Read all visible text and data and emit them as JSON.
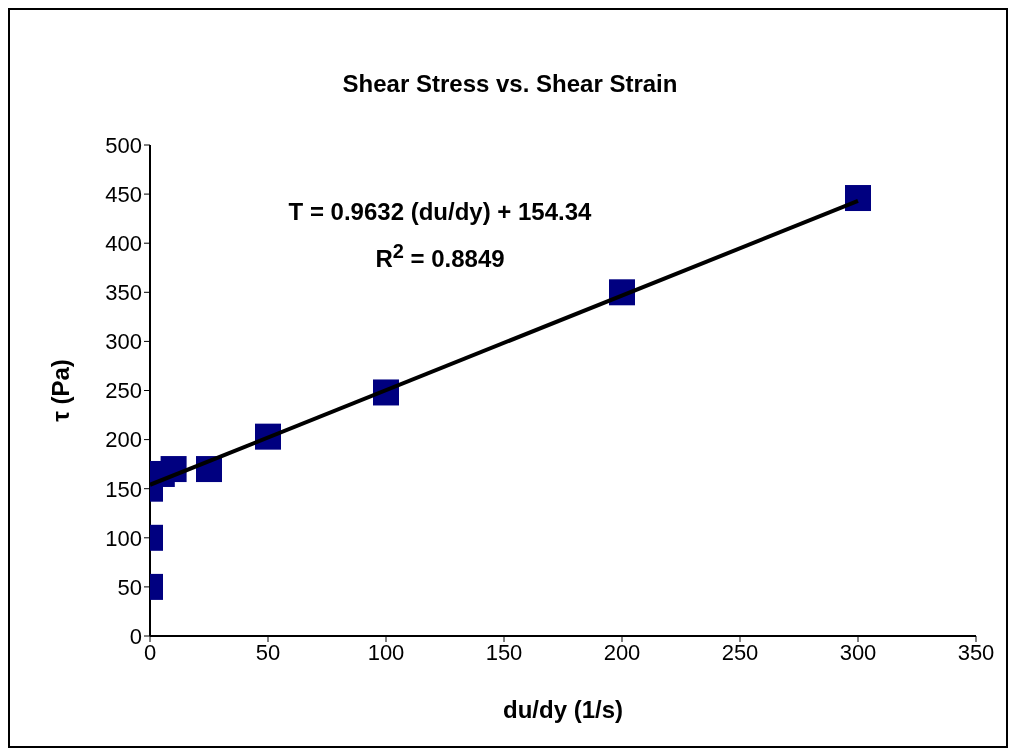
{
  "chart_data": {
    "type": "scatter",
    "title": "Shear Stress vs. Shear Strain",
    "xlabel": "du/dy (1/s)",
    "ylabel": "τ (Pa)",
    "annotations": [
      "T = 0.9632 (du/dy) + 154.34",
      "R$^{2}$ = 0.8849"
    ],
    "series": [
      {
        "color": "#000080",
        "marker": "square",
        "x": [
          0,
          0,
          0,
          5,
          10,
          25,
          50,
          100,
          200,
          300
        ],
        "values": [
          50,
          100,
          150,
          165,
          170,
          170,
          203,
          248,
          350,
          446
        ]
      },
      {
        "type": "line",
        "color": "#000000",
        "marker": "none",
        "x": [
          0,
          300
        ],
        "values": [
          154,
          443
        ]
      }
    ],
    "xlim": [
      0,
      350
    ],
    "xticks": [
      0,
      50,
      100,
      150,
      200,
      250,
      300,
      350
    ],
    "ylim": [
      0,
      500
    ],
    "yticks": [
      0,
      50,
      100,
      150,
      200,
      250,
      300,
      350,
      400,
      450,
      500
    ],
    "grid": false
  }
}
